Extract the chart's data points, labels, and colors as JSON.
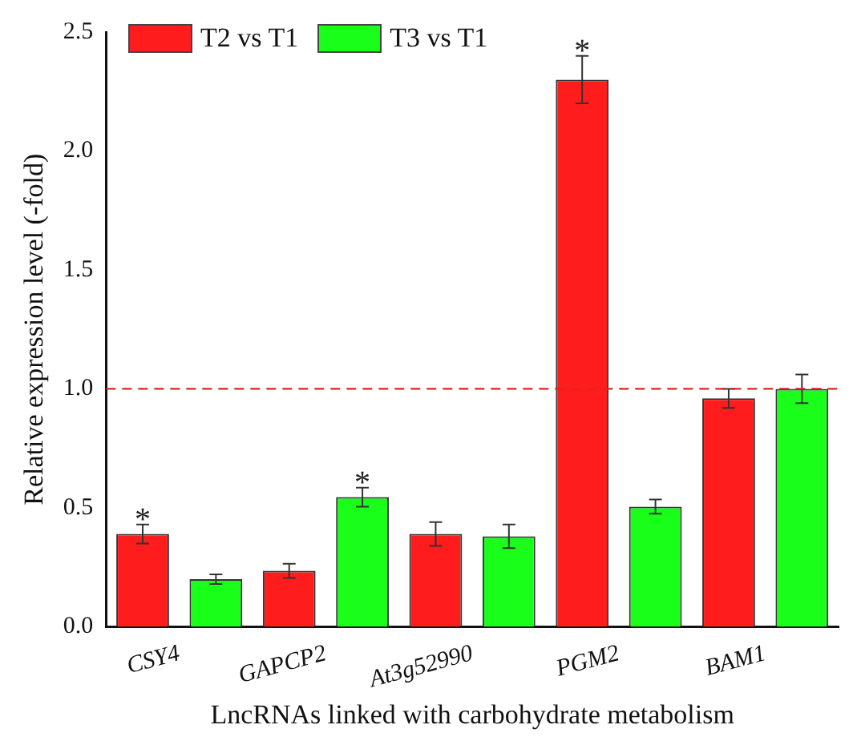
{
  "chart_data": {
    "type": "bar",
    "xlabel": "LncRNAs linked with carbohydrate metabolism",
    "ylabel": "Relative expression level (-fold)",
    "categories": [
      "CSY4",
      "GAPCP2",
      "At3g52990",
      "PGM2",
      "BAM1"
    ],
    "series": [
      {
        "name": "T2 vs T1",
        "color": "#ff1c1c",
        "values": [
          0.39,
          0.235,
          0.39,
          2.3,
          0.96
        ],
        "value_labels": [
          "*",
          null,
          null,
          "*",
          null
        ],
        "errors": [
          0.04,
          0.03,
          0.05,
          0.1,
          0.04
        ]
      },
      {
        "name": "T3 vs T1",
        "color": "#19ff19",
        "values": [
          0.2,
          0.545,
          0.38,
          0.505,
          1.0
        ],
        "value_labels": [
          null,
          "*",
          null,
          null,
          null
        ],
        "errors": [
          0.02,
          0.04,
          0.05,
          0.03,
          0.06
        ]
      }
    ],
    "ylim": [
      0,
      2.5
    ],
    "yticks": [
      {
        "value": 0,
        "label": "0.0"
      },
      {
        "value": 0.5,
        "label": "0.5"
      },
      {
        "value": 1,
        "label": "1.0"
      },
      {
        "value": 1.5,
        "label": "1.5"
      },
      {
        "value": 2,
        "label": "2.0"
      },
      {
        "value": 2.5,
        "label": "2.5"
      }
    ],
    "ref_lines": [
      {
        "axis": "y",
        "value": 1.0,
        "color": "#e02020",
        "line_style": "dashed"
      }
    ],
    "legend": "top left",
    "grid": false
  }
}
